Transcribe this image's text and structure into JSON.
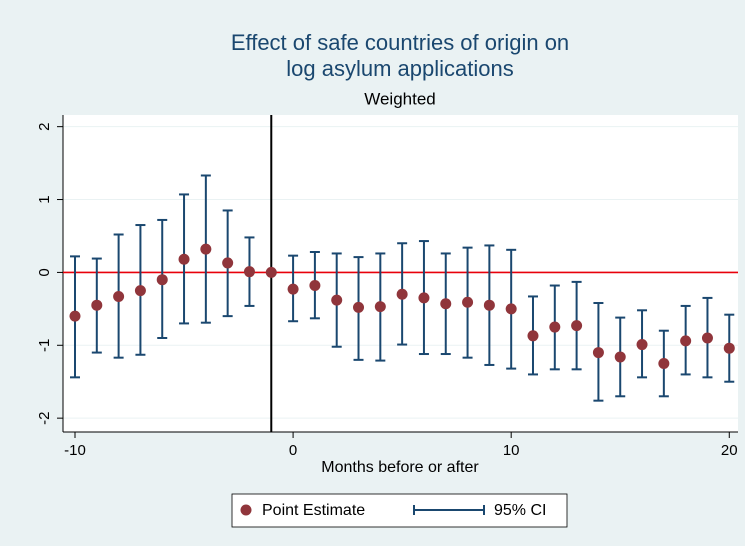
{
  "chart_data": {
    "type": "errorbar",
    "title": [
      "Effect of safe countries of origin on",
      "log asylum applications"
    ],
    "subtitle": "Weighted",
    "x_label": "Months before or after",
    "x": [
      -10,
      -9,
      -8,
      -7,
      -6,
      -5,
      -4,
      -3,
      -2,
      -1,
      0,
      1,
      2,
      3,
      4,
      5,
      6,
      7,
      8,
      9,
      10,
      11,
      12,
      13,
      14,
      15,
      16,
      17,
      18,
      19,
      20
    ],
    "series": [
      {
        "name": "Point Estimate",
        "color": "#90353b",
        "values": [
          -0.6,
          -0.45,
          -0.33,
          -0.25,
          -0.1,
          0.18,
          0.32,
          0.13,
          0.01,
          0,
          -0.23,
          -0.18,
          -0.38,
          -0.48,
          -0.47,
          -0.3,
          -0.35,
          -0.43,
          -0.41,
          -0.45,
          -0.5,
          -0.87,
          -0.75,
          -0.73,
          -1.1,
          -1.16,
          -0.99,
          -1.25,
          -0.94,
          -0.9,
          -1.04
        ]
      },
      {
        "name": "95% CI",
        "color": "#1a476f",
        "lower": [
          -1.44,
          -1.1,
          -1.17,
          -1.13,
          -0.9,
          -0.7,
          -0.69,
          -0.6,
          -0.46,
          0,
          -0.67,
          -0.63,
          -1.02,
          -1.2,
          -1.21,
          -0.99,
          -1.12,
          -1.12,
          -1.17,
          -1.27,
          -1.32,
          -1.4,
          -1.33,
          -1.33,
          -1.76,
          -1.7,
          -1.44,
          -1.7,
          -1.4,
          -1.44,
          -1.5
        ],
        "upper": [
          0.22,
          0.19,
          0.52,
          0.65,
          0.72,
          1.07,
          1.33,
          0.85,
          0.48,
          0,
          0.23,
          0.28,
          0.26,
          0.21,
          0.26,
          0.4,
          0.43,
          0.26,
          0.34,
          0.37,
          0.31,
          -0.33,
          -0.18,
          -0.13,
          -0.42,
          -0.62,
          -0.52,
          -0.8,
          -0.46,
          -0.35,
          -0.58
        ]
      }
    ],
    "xlim": [
      -10.55,
      20.4
    ],
    "ylim": [
      -2.19,
      2.16
    ],
    "xticks": [
      -10,
      0,
      10,
      20
    ],
    "yticks": [
      -2,
      -1,
      0,
      1,
      2
    ],
    "grid": true,
    "xline": {
      "value": -1,
      "color": "#000000"
    },
    "yline": {
      "value": 0,
      "color": "#e8000b"
    },
    "legend": "bottom"
  }
}
